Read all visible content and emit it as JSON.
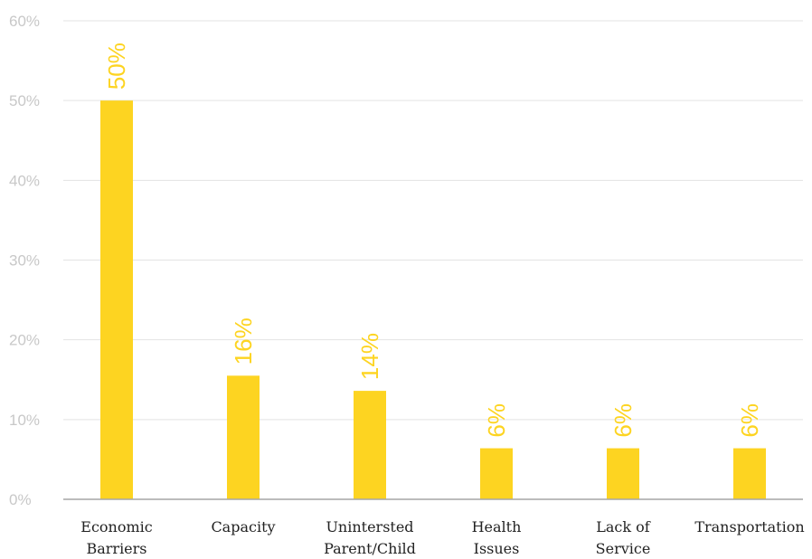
{
  "chart_data": {
    "type": "bar",
    "categories": [
      [
        "Economic",
        "Barriers"
      ],
      [
        "Capacity"
      ],
      [
        "Unintersted",
        "Parent/Child"
      ],
      [
        "Health",
        "Issues"
      ],
      [
        "Lack of",
        "Service"
      ],
      [
        "Transportation"
      ]
    ],
    "values": [
      0.5,
      0.155,
      0.136,
      0.064,
      0.064,
      0.064
    ],
    "data_labels": [
      "50%",
      "16%",
      "14%",
      "6%",
      "6%",
      "6%"
    ],
    "y_ticks": [
      "0%",
      "10%",
      "20%",
      "30%",
      "40%",
      "50%",
      "60%"
    ],
    "ylim": [
      0,
      0.6
    ],
    "grid": true,
    "legend": "none",
    "title": "",
    "xlabel": "",
    "ylabel": "",
    "colors": {
      "bar": "#FDD421",
      "label": "#FDD421",
      "grid": "#e3e3e3",
      "axis": "#a6a6a6"
    }
  }
}
